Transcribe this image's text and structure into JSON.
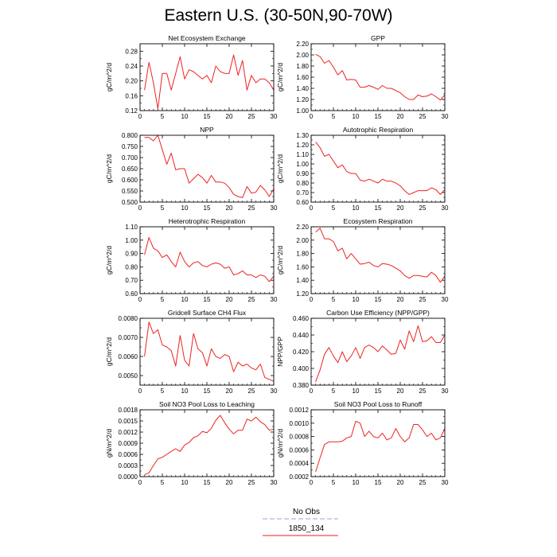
{
  "title": "Eastern U.S. (30-50N,90-70W)",
  "legend": {
    "items": [
      {
        "label": "No Obs",
        "color": "#9999ee",
        "style": "dashed"
      },
      {
        "label": "1850_134",
        "color": "#ee2222",
        "style": "solid"
      }
    ]
  },
  "chart_data": [
    {
      "type": "line",
      "title": "Net Ecosystem Exchange",
      "ylabel": "gC/m^2/d",
      "xlim": [
        0,
        30
      ],
      "ylim": [
        0.12,
        0.3
      ],
      "xticks": [
        "0",
        "5",
        "10",
        "15",
        "20",
        "25",
        "30"
      ],
      "yticks": [
        "0.12",
        "0.16",
        "0.20",
        "0.24",
        "0.28"
      ],
      "ytick_values": [
        0.12,
        0.16,
        0.2,
        0.24,
        0.28
      ],
      "series": [
        {
          "color": "#ee2222",
          "x": [
            1,
            2,
            3,
            4,
            5,
            6,
            7,
            8,
            9,
            10,
            11,
            12,
            13,
            14,
            15,
            16,
            17,
            18,
            19,
            20,
            21,
            22,
            23,
            24,
            25,
            26,
            27,
            28,
            29,
            30
          ],
          "values": [
            0.175,
            0.25,
            0.195,
            0.125,
            0.22,
            0.22,
            0.175,
            0.22,
            0.265,
            0.205,
            0.23,
            0.225,
            0.215,
            0.205,
            0.215,
            0.195,
            0.24,
            0.225,
            0.22,
            0.22,
            0.27,
            0.215,
            0.255,
            0.175,
            0.215,
            0.195,
            0.205,
            0.205,
            0.195,
            0.175
          ]
        }
      ]
    },
    {
      "type": "line",
      "title": "GPP",
      "ylabel": "gC/m^2/d",
      "xlim": [
        0,
        30
      ],
      "ylim": [
        1.0,
        2.2
      ],
      "xticks": [
        "0",
        "5",
        "10",
        "15",
        "20",
        "25",
        "30"
      ],
      "yticks": [
        "1.00",
        "1.20",
        "1.40",
        "1.60",
        "1.80",
        "2.00",
        "2.20"
      ],
      "ytick_values": [
        1.0,
        1.2,
        1.4,
        1.6,
        1.8,
        2.0,
        2.2
      ],
      "series": [
        {
          "color": "#ee2222",
          "x": [
            1,
            2,
            3,
            4,
            5,
            6,
            7,
            8,
            9,
            10,
            11,
            12,
            13,
            14,
            15,
            16,
            17,
            18,
            19,
            20,
            21,
            22,
            23,
            24,
            25,
            26,
            27,
            28,
            29,
            30
          ],
          "values": [
            2.01,
            1.97,
            1.85,
            1.9,
            1.78,
            1.64,
            1.72,
            1.55,
            1.56,
            1.55,
            1.42,
            1.42,
            1.45,
            1.42,
            1.38,
            1.45,
            1.4,
            1.4,
            1.36,
            1.32,
            1.25,
            1.2,
            1.2,
            1.28,
            1.25,
            1.26,
            1.3,
            1.25,
            1.19,
            1.28
          ]
        }
      ]
    },
    {
      "type": "line",
      "title": "NPP",
      "ylabel": "gC/m^2/d",
      "xlim": [
        0,
        30
      ],
      "ylim": [
        0.5,
        0.8
      ],
      "xticks": [
        "0",
        "5",
        "10",
        "15",
        "20",
        "25",
        "30"
      ],
      "yticks": [
        "0.500",
        "0.550",
        "0.600",
        "0.650",
        "0.700",
        "0.750",
        "0.800"
      ],
      "ytick_values": [
        0.5,
        0.55,
        0.6,
        0.65,
        0.7,
        0.75,
        0.8
      ],
      "series": [
        {
          "color": "#ee2222",
          "x": [
            1,
            2,
            3,
            4,
            5,
            6,
            7,
            8,
            9,
            10,
            11,
            12,
            13,
            14,
            15,
            16,
            17,
            18,
            19,
            20,
            21,
            22,
            23,
            24,
            25,
            26,
            27,
            28,
            29,
            30
          ],
          "values": [
            0.79,
            0.79,
            0.775,
            0.8,
            0.735,
            0.67,
            0.72,
            0.645,
            0.65,
            0.65,
            0.585,
            0.605,
            0.625,
            0.61,
            0.585,
            0.62,
            0.59,
            0.59,
            0.585,
            0.565,
            0.535,
            0.525,
            0.52,
            0.57,
            0.54,
            0.545,
            0.575,
            0.555,
            0.525,
            0.56
          ]
        }
      ]
    },
    {
      "type": "line",
      "title": "Autotrophic Respiration",
      "ylabel": "gC/m^2/d",
      "xlim": [
        0,
        30
      ],
      "ylim": [
        0.6,
        1.3
      ],
      "xticks": [
        "0",
        "5",
        "10",
        "15",
        "20",
        "25",
        "30"
      ],
      "yticks": [
        "0.60",
        "0.70",
        "0.80",
        "0.90",
        "1.00",
        "1.10",
        "1.20",
        "1.30"
      ],
      "ytick_values": [
        0.6,
        0.7,
        0.8,
        0.9,
        1.0,
        1.1,
        1.2,
        1.3
      ],
      "series": [
        {
          "color": "#ee2222",
          "x": [
            1,
            2,
            3,
            4,
            5,
            6,
            7,
            8,
            9,
            10,
            11,
            12,
            13,
            14,
            15,
            16,
            17,
            18,
            19,
            20,
            21,
            22,
            23,
            24,
            25,
            26,
            27,
            28,
            29,
            30
          ],
          "values": [
            1.23,
            1.17,
            1.08,
            1.1,
            1.03,
            0.96,
            0.99,
            0.92,
            0.9,
            0.9,
            0.83,
            0.82,
            0.84,
            0.82,
            0.8,
            0.84,
            0.82,
            0.82,
            0.8,
            0.77,
            0.72,
            0.68,
            0.7,
            0.72,
            0.72,
            0.72,
            0.75,
            0.73,
            0.68,
            0.73
          ]
        }
      ]
    },
    {
      "type": "line",
      "title": "Heterotrophic Respiration",
      "ylabel": "gC/m^2/d",
      "xlim": [
        0,
        30
      ],
      "ylim": [
        0.6,
        1.1
      ],
      "xticks": [
        "0",
        "5",
        "10",
        "15",
        "20",
        "25",
        "30"
      ],
      "yticks": [
        "0.60",
        "0.70",
        "0.80",
        "0.90",
        "1.00",
        "1.10"
      ],
      "ytick_values": [
        0.6,
        0.7,
        0.8,
        0.9,
        1.0,
        1.1
      ],
      "series": [
        {
          "color": "#ee2222",
          "x": [
            1,
            2,
            3,
            4,
            5,
            6,
            7,
            8,
            9,
            10,
            11,
            12,
            13,
            14,
            15,
            16,
            17,
            18,
            19,
            20,
            21,
            22,
            23,
            24,
            25,
            26,
            27,
            28,
            29,
            30
          ],
          "values": [
            0.89,
            1.02,
            0.94,
            0.92,
            0.87,
            0.89,
            0.84,
            0.8,
            0.91,
            0.84,
            0.8,
            0.83,
            0.84,
            0.81,
            0.8,
            0.82,
            0.83,
            0.82,
            0.79,
            0.8,
            0.74,
            0.75,
            0.77,
            0.74,
            0.74,
            0.72,
            0.74,
            0.73,
            0.69,
            0.73
          ]
        }
      ]
    },
    {
      "type": "line",
      "title": "Ecosystem Respiration",
      "ylabel": "gC/m^2/d",
      "xlim": [
        0,
        30
      ],
      "ylim": [
        1.2,
        2.2
      ],
      "xticks": [
        "0",
        "5",
        "10",
        "15",
        "20",
        "25",
        "30"
      ],
      "yticks": [
        "1.20",
        "1.40",
        "1.60",
        "1.80",
        "2.00",
        "2.20"
      ],
      "ytick_values": [
        1.2,
        1.4,
        1.6,
        1.8,
        2.0,
        2.2
      ],
      "series": [
        {
          "color": "#ee2222",
          "x": [
            1,
            2,
            3,
            4,
            5,
            6,
            7,
            8,
            9,
            10,
            11,
            12,
            13,
            14,
            15,
            16,
            17,
            18,
            19,
            20,
            21,
            22,
            23,
            24,
            25,
            26,
            27,
            28,
            29,
            30
          ],
          "values": [
            2.12,
            2.18,
            2.02,
            2.02,
            1.98,
            1.84,
            1.88,
            1.72,
            1.8,
            1.72,
            1.64,
            1.65,
            1.67,
            1.62,
            1.6,
            1.65,
            1.64,
            1.62,
            1.58,
            1.54,
            1.47,
            1.43,
            1.47,
            1.47,
            1.46,
            1.45,
            1.52,
            1.47,
            1.37,
            1.46
          ]
        }
      ]
    },
    {
      "type": "line",
      "title": "Gridcell Surface CH4 Flux",
      "ylabel": "gC/m^2/d",
      "xlim": [
        0,
        30
      ],
      "ylim": [
        0.0045,
        0.008
      ],
      "xticks": [
        "0",
        "5",
        "10",
        "15",
        "20",
        "25",
        "30"
      ],
      "yticks": [
        "0.0050",
        "0.0060",
        "0.0070",
        "0.0080"
      ],
      "ytick_values": [
        0.005,
        0.006,
        0.007,
        0.008
      ],
      "series": [
        {
          "color": "#ee2222",
          "x": [
            1,
            2,
            3,
            4,
            5,
            6,
            7,
            8,
            9,
            10,
            11,
            12,
            13,
            14,
            15,
            16,
            17,
            18,
            19,
            20,
            21,
            22,
            23,
            24,
            25,
            26,
            27,
            28,
            29,
            30
          ],
          "values": [
            0.006,
            0.0078,
            0.0072,
            0.0074,
            0.0066,
            0.0065,
            0.0063,
            0.0055,
            0.0071,
            0.0058,
            0.0055,
            0.0072,
            0.0064,
            0.0062,
            0.0055,
            0.0064,
            0.006,
            0.0059,
            0.0061,
            0.006,
            0.0052,
            0.0057,
            0.0055,
            0.0056,
            0.0054,
            0.0053,
            0.0056,
            0.0049,
            0.0048,
            0.0047
          ]
        }
      ]
    },
    {
      "type": "line",
      "title": "Carbon Use Efficiency (NPP/GPP)",
      "ylabel": "NPP/GPP",
      "xlim": [
        0,
        30
      ],
      "ylim": [
        0.38,
        0.46
      ],
      "xticks": [
        "0",
        "5",
        "10",
        "15",
        "20",
        "25",
        "30"
      ],
      "yticks": [
        "0.380",
        "0.400",
        "0.420",
        "0.440",
        "0.460"
      ],
      "ytick_values": [
        0.38,
        0.4,
        0.42,
        0.44,
        0.46
      ],
      "series": [
        {
          "color": "#ee2222",
          "x": [
            1,
            2,
            3,
            4,
            5,
            6,
            7,
            8,
            9,
            10,
            11,
            12,
            13,
            14,
            15,
            16,
            17,
            18,
            19,
            20,
            21,
            22,
            23,
            24,
            25,
            26,
            27,
            28,
            29,
            30
          ],
          "values": [
            0.384,
            0.398,
            0.417,
            0.425,
            0.415,
            0.407,
            0.42,
            0.408,
            0.415,
            0.425,
            0.412,
            0.425,
            0.428,
            0.425,
            0.42,
            0.427,
            0.422,
            0.417,
            0.418,
            0.434,
            0.423,
            0.445,
            0.432,
            0.451,
            0.432,
            0.433,
            0.438,
            0.431,
            0.431,
            0.44
          ]
        }
      ]
    },
    {
      "type": "line",
      "title": "Soil NO3 Pool Loss to Leaching",
      "ylabel": "gN/m^2/d",
      "xlim": [
        0,
        30
      ],
      "ylim": [
        0.0,
        0.0018
      ],
      "xticks": [
        "0",
        "5",
        "10",
        "15",
        "20",
        "25",
        "30"
      ],
      "yticks": [
        "0.0000",
        "0.0003",
        "0.0006",
        "0.0009",
        "0.0012",
        "0.0015",
        "0.0018"
      ],
      "ytick_values": [
        0,
        0.0003,
        0.0006,
        0.0009,
        0.0012,
        0.0015,
        0.0018
      ],
      "series": [
        {
          "color": "#ee2222",
          "x": [
            1,
            2,
            3,
            4,
            5,
            6,
            7,
            8,
            9,
            10,
            11,
            12,
            13,
            14,
            15,
            16,
            17,
            18,
            19,
            20,
            21,
            22,
            23,
            24,
            25,
            26,
            27,
            28,
            29,
            30
          ],
          "values": [
            5e-05,
            0.0001,
            0.0003,
            0.00048,
            0.00052,
            0.0006,
            0.00068,
            0.00075,
            0.00068,
            0.00085,
            0.00092,
            0.00105,
            0.0011,
            0.00122,
            0.00118,
            0.0013,
            0.00152,
            0.00165,
            0.00145,
            0.00128,
            0.00115,
            0.00125,
            0.00125,
            0.00155,
            0.0015,
            0.0016,
            0.00148,
            0.0014,
            0.00125,
            0.00128
          ]
        }
      ]
    },
    {
      "type": "line",
      "title": "Soil NO3 Pool Loss to Runoff",
      "ylabel": "gN/m^2/d",
      "xlim": [
        0,
        30
      ],
      "ylim": [
        0.0002,
        0.0012
      ],
      "xticks": [
        "0",
        "5",
        "10",
        "15",
        "20",
        "25",
        "30"
      ],
      "yticks": [
        "0.0002",
        "0.0004",
        "0.0006",
        "0.0008",
        "0.0010",
        "0.0012"
      ],
      "ytick_values": [
        0.0002,
        0.0004,
        0.0006,
        0.0008,
        0.001,
        0.0012
      ],
      "series": [
        {
          "color": "#ee2222",
          "x": [
            1,
            2,
            3,
            4,
            5,
            6,
            7,
            8,
            9,
            10,
            11,
            12,
            13,
            14,
            15,
            16,
            17,
            18,
            19,
            20,
            21,
            22,
            23,
            24,
            25,
            26,
            27,
            28,
            29,
            30
          ],
          "values": [
            0.00027,
            0.00048,
            0.00068,
            0.00072,
            0.00072,
            0.00072,
            0.00073,
            0.00078,
            0.0008,
            0.00103,
            0.001,
            0.0008,
            0.00088,
            0.0008,
            0.00078,
            0.00085,
            0.00075,
            0.00078,
            0.00092,
            0.0008,
            0.00072,
            0.00078,
            0.00098,
            0.00098,
            0.0009,
            0.0008,
            0.00085,
            0.00075,
            0.00078,
            0.00092
          ]
        }
      ]
    }
  ]
}
